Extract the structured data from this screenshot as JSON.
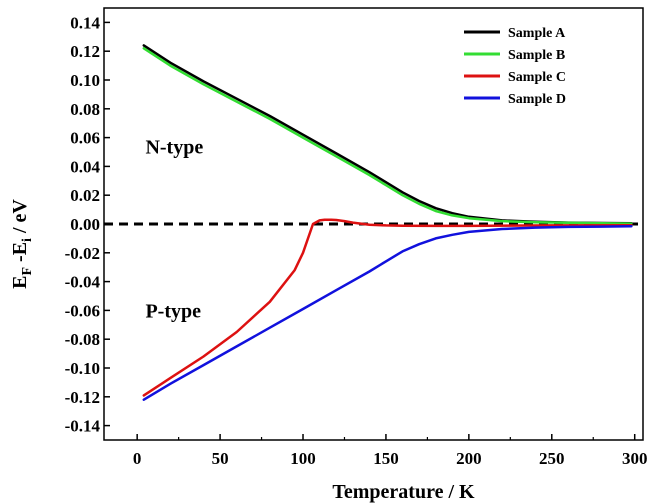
{
  "chart_data": {
    "type": "line",
    "xlabel": "Temperature / K",
    "ylabel": {
      "main": "E",
      "sub1": "F",
      "mid": " -E",
      "sub2": "i",
      "tail": " / eV"
    },
    "xlim": [
      -20,
      305
    ],
    "ylim": [
      -0.15,
      0.15
    ],
    "xticks": [
      0,
      50,
      100,
      150,
      200,
      250,
      300
    ],
    "xtick_labels": [
      "0",
      "50",
      "100",
      "150",
      "200",
      "250",
      "300"
    ],
    "yticks": [
      0.14,
      0.12,
      0.1,
      0.08,
      0.06,
      0.04,
      0.02,
      0.0,
      -0.02,
      -0.04,
      -0.06,
      -0.08,
      -0.1,
      -0.12,
      -0.14
    ],
    "ytick_labels": [
      "0.14",
      "0.12",
      "0.10",
      "0.08",
      "0.06",
      "0.04",
      "0.02",
      "0.00",
      "-0.02",
      "-0.04",
      "-0.06",
      "-0.08",
      "-0.10",
      "-0.12",
      "-0.14"
    ],
    "legend_position": "top-right",
    "reference_line": {
      "y": 0,
      "style": "dashed",
      "color": "#000000"
    },
    "annotations": [
      {
        "text": "N-type",
        "x": 5,
        "y": 0.049
      },
      {
        "text": "P-type",
        "x": 5,
        "y": -0.065
      }
    ],
    "series": [
      {
        "name": "Sample A",
        "color": "#000000",
        "x": [
          4,
          20,
          40,
          60,
          80,
          100,
          120,
          140,
          150,
          160,
          170,
          180,
          190,
          200,
          220,
          240,
          260,
          280,
          298
        ],
        "y": [
          0.124,
          0.112,
          0.099,
          0.087,
          0.075,
          0.062,
          0.049,
          0.036,
          0.029,
          0.022,
          0.016,
          0.011,
          0.0075,
          0.005,
          0.0025,
          0.0015,
          0.001,
          0.0007,
          0.0005
        ]
      },
      {
        "name": "Sample B",
        "color": "#33dd33",
        "x": [
          4,
          20,
          40,
          60,
          80,
          100,
          120,
          140,
          150,
          160,
          170,
          180,
          190,
          200,
          220,
          240,
          260,
          280,
          298
        ],
        "y": [
          0.122,
          0.11,
          0.097,
          0.085,
          0.073,
          0.06,
          0.047,
          0.034,
          0.027,
          0.02,
          0.014,
          0.009,
          0.006,
          0.004,
          0.002,
          0.0012,
          0.0008,
          0.0005,
          0.0003
        ]
      },
      {
        "name": "Sample C",
        "color": "#dd1111",
        "x": [
          4,
          20,
          40,
          60,
          80,
          95,
          100,
          103,
          106,
          110,
          113,
          117,
          120,
          125,
          130,
          140,
          150,
          160,
          180,
          200,
          250,
          298
        ],
        "y": [
          -0.119,
          -0.107,
          -0.092,
          -0.075,
          -0.054,
          -0.032,
          -0.02,
          -0.01,
          0.0,
          0.0025,
          0.003,
          0.003,
          0.0028,
          0.002,
          0.001,
          -0.0005,
          -0.001,
          -0.0012,
          -0.0013,
          -0.0013,
          -0.001,
          -0.0008
        ]
      },
      {
        "name": "Sample D",
        "color": "#1111dd",
        "x": [
          4,
          20,
          40,
          60,
          80,
          100,
          120,
          140,
          150,
          160,
          170,
          180,
          190,
          200,
          220,
          240,
          260,
          280,
          298
        ],
        "y": [
          -0.122,
          -0.111,
          -0.098,
          -0.085,
          -0.072,
          -0.059,
          -0.046,
          -0.033,
          -0.026,
          -0.019,
          -0.014,
          -0.01,
          -0.0075,
          -0.0055,
          -0.0035,
          -0.0025,
          -0.002,
          -0.0018,
          -0.0016
        ]
      }
    ]
  }
}
